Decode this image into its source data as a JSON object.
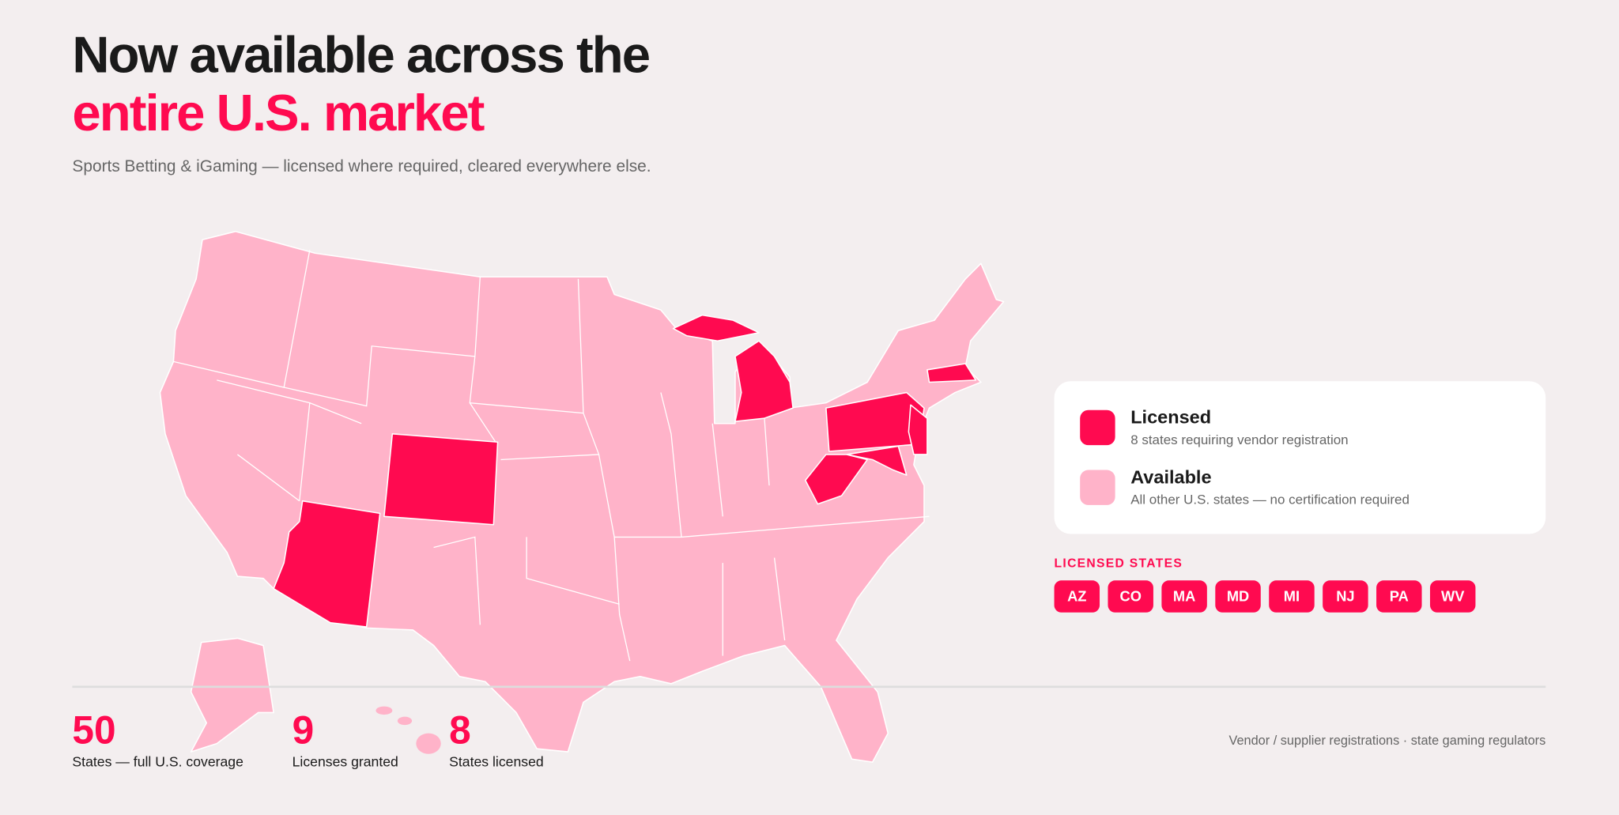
{
  "headline": {
    "line1": "Now available across the",
    "line2": "entire U.S. market",
    "subtitle": "Sports Betting & iGaming — licensed where required, cleared everywhere else."
  },
  "legend": [
    {
      "label": "Licensed",
      "description": "8 states requiring vendor registration"
    },
    {
      "label": "Available",
      "description": "All other U.S. states — no certification required"
    }
  ],
  "licensed_states": {
    "heading": "LICENSED STATES",
    "codes": [
      "AZ",
      "CO",
      "MA",
      "MD",
      "MI",
      "NJ",
      "PA",
      "WV"
    ]
  },
  "stats": [
    {
      "value": "50",
      "label": "States — full U.S. coverage"
    },
    {
      "value": "9",
      "label": "Licenses granted"
    },
    {
      "value": "8",
      "label": "States licensed"
    }
  ],
  "source": "Vendor / supplier registrations · state gaming regulators"
}
